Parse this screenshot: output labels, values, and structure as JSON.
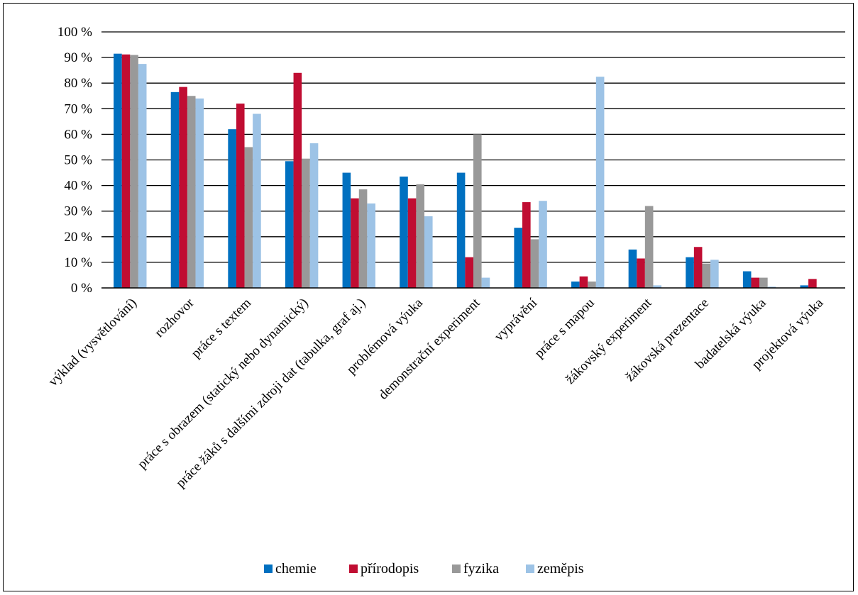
{
  "chart_data": {
    "type": "bar",
    "title": "",
    "xlabel": "",
    "ylabel": "",
    "ylim": [
      0,
      100
    ],
    "y_ticks": [
      "0 %",
      "10 %",
      "20 %",
      "30 %",
      "40 %",
      "50 %",
      "60 %",
      "70 %",
      "80 %",
      "90 %",
      "100 %"
    ],
    "grid": true,
    "legend_position": "bottom",
    "categories": [
      "výklad (vysvětlování)",
      "rozhovor",
      "práce s textem",
      "práce s obrazem (statický nebo dynamický)",
      "práce žáků s dalšími zdroji dat (tabulka, graf aj.)",
      "problémová výuka",
      "demonstrační experiment",
      "vyprávění",
      "práce s mapou",
      "žákovský experiment",
      "žákovská prezentace",
      "badatelská výuka",
      "projektová výuka"
    ],
    "series": [
      {
        "name": "chemie",
        "color": "#0070C0",
        "values": [
          91.5,
          76.5,
          62,
          49.5,
          45,
          43.5,
          45,
          23.5,
          2.5,
          15,
          12,
          6.5,
          1
        ]
      },
      {
        "name": "přírodopis",
        "color": "#C00D32",
        "values": [
          91.2,
          78.5,
          72,
          84,
          35,
          35,
          12,
          33.5,
          4.5,
          11.5,
          16,
          4,
          3.5
        ]
      },
      {
        "name": "fyzika",
        "color": "#999999",
        "values": [
          91,
          75,
          55,
          50.5,
          38.5,
          40.5,
          60,
          19,
          2.5,
          32,
          9.5,
          4,
          0
        ]
      },
      {
        "name": "zeměpis",
        "color": "#9DC3E6",
        "values": [
          87.5,
          74,
          68,
          56.5,
          33,
          28,
          4,
          34,
          82.5,
          1,
          11,
          0.5,
          0
        ]
      }
    ]
  }
}
